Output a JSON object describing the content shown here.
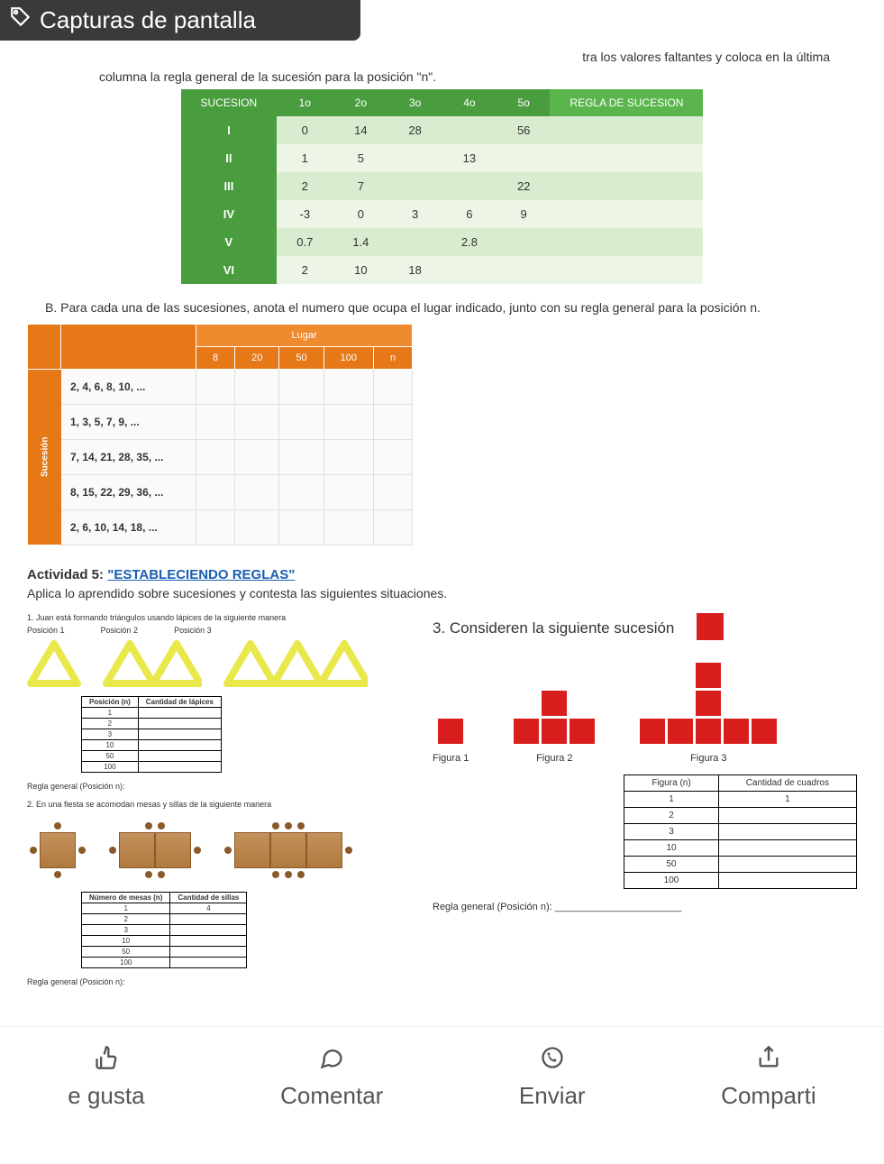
{
  "header": {
    "title": "Capturas de pantalla"
  },
  "intro_right": "tra los valores faltantes y coloca en la última",
  "intro_line2": "columna la regla general de la sucesión para la posición \"n\".",
  "tableA": {
    "headers": [
      "SUCESION",
      "1o",
      "2o",
      "3o",
      "4o",
      "5o",
      "REGLA DE SUCESION"
    ],
    "rows": [
      {
        "label": "I",
        "cells": [
          "0",
          "14",
          "28",
          "",
          "56",
          ""
        ]
      },
      {
        "label": "II",
        "cells": [
          "1",
          "5",
          "",
          "13",
          "",
          ""
        ]
      },
      {
        "label": "III",
        "cells": [
          "2",
          "7",
          "",
          "",
          "22",
          ""
        ]
      },
      {
        "label": "IV",
        "cells": [
          "-3",
          "0",
          "3",
          "6",
          "9",
          ""
        ]
      },
      {
        "label": "V",
        "cells": [
          "0.7",
          "1.4",
          "",
          "2.8",
          "",
          ""
        ]
      },
      {
        "label": "VI",
        "cells": [
          "2",
          "10",
          "18",
          "",
          "",
          ""
        ]
      }
    ],
    "header_bg": "#4a9d3e",
    "row_odd_bg": "#d9ecd0",
    "row_even_bg": "#ecf5e6"
  },
  "sectionB": {
    "label": "B.",
    "text": "Para cada una de las sucesiones, anota el numero que ocupa el lugar indicado, junto con su regla general para la posición n.",
    "lugar_label": "Lugar",
    "side_label": "Sucesión",
    "cols": [
      "8",
      "20",
      "50",
      "100",
      "n"
    ],
    "seqs": [
      "2, 4, 6, 8, 10, ...",
      "1, 3, 5, 7, 9, ...",
      "7, 14, 21, 28, 35, ...",
      "8, 15, 22, 29, 36, ...",
      "2, 6, 10, 14, 18, ..."
    ],
    "header_bg": "#e67817"
  },
  "act5": {
    "prefix": "Actividad 5:",
    "link": "\"ESTABLECIENDO REGLAS\"",
    "sub": "Aplica lo aprendido sobre sucesiones y contesta las siguientes situaciones."
  },
  "q1": {
    "text": "1. Juan está formando triángulos usando lápices de la siguiente manera",
    "pos": [
      "Posición 1",
      "Posición 2",
      "Posición 3"
    ],
    "mini_headers": [
      "Posición (n)",
      "Cantidad de lápices"
    ],
    "mini_rows": [
      "1",
      "2",
      "3",
      "10",
      "50",
      "100"
    ],
    "regla": "Regla general (Posición n):",
    "tri_color": "#e8e84a",
    "tri_stroke": "#b8b838"
  },
  "q2": {
    "text": "2. En una fiesta se acomodan mesas y sillas de la siguiente manera",
    "mini_headers": [
      "Número de mesas (n)",
      "Cantidad de sillas"
    ],
    "mini_rows": [
      "1",
      "2",
      "3",
      "10",
      "50",
      "100"
    ],
    "mini_first_val": "4",
    "regla": "Regla general (Posición n):",
    "table_color": "#c4915c",
    "dot_color": "#8a5a2a"
  },
  "q3": {
    "title": "3. Consideren la siguiente sucesión",
    "labels": [
      "Figura 1",
      "Figura 2",
      "Figura 3"
    ],
    "headers": [
      "Figura (n)",
      "Cantidad de cuadros"
    ],
    "rows": [
      "1",
      "2",
      "3",
      "10",
      "50",
      "100"
    ],
    "first_val": "1",
    "regla": "Regla general (Posición n):",
    "sq_color": "#d91e1e"
  },
  "bottom": {
    "items": [
      {
        "icon": "thumbs-up",
        "label": "e gusta"
      },
      {
        "icon": "comment",
        "label": "Comentar"
      },
      {
        "icon": "whatsapp",
        "label": "Enviar"
      },
      {
        "icon": "share",
        "label": "Comparti"
      }
    ]
  }
}
